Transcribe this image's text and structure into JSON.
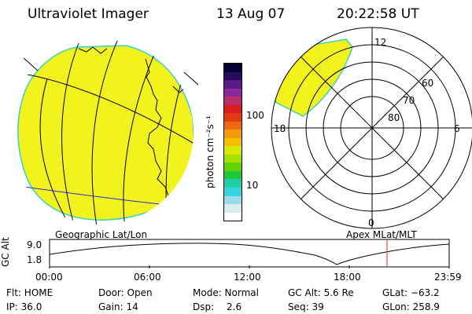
{
  "header": {
    "instrument": "Ultraviolet Imager",
    "date": "13 Aug 07",
    "time": "20:22:58 UT"
  },
  "colorbar": {
    "unit_label": "photon cm⁻²s⁻¹",
    "ticks": [
      "100",
      "10"
    ],
    "colors": [
      "#000033",
      "#2a0a5a",
      "#5a1a8a",
      "#8a2a9a",
      "#b8306a",
      "#dd1c1c",
      "#e33a14",
      "#ee6a0c",
      "#f39a08",
      "#f5c000",
      "#d9e800",
      "#a8e000",
      "#60d400",
      "#1ec83a",
      "#1ed0a8",
      "#36d6e0",
      "#9adcea",
      "#d8ecf2",
      "#ffffff"
    ]
  },
  "left_map": {
    "label": "Geographic Lat/Lon",
    "fill_color": "#f2f21c",
    "edge_color": "#3ccfc8"
  },
  "right_map": {
    "label": "Apex MLat/MLT",
    "mlt_labels": {
      "top": "12",
      "left": "18",
      "right": "6",
      "bottom": "0"
    },
    "lat_labels": [
      "60",
      "70",
      "80"
    ]
  },
  "altitude_plot": {
    "ylabel": "GC Alt",
    "yticks": [
      "9.0",
      "1.8"
    ],
    "xticks": [
      "00:00",
      "06:00",
      "12:00",
      "18:00",
      "23:59"
    ],
    "current_marker_color": "#e02020"
  },
  "status": {
    "flt": "Flt: HOME",
    "ip": "IP: 36.0",
    "door": "Door: Open",
    "gain": "Gain: 14",
    "mode": "Mode: Normal",
    "dsp_label": "Dsp:",
    "dsp_value": "2.6",
    "gc_alt": "GC Alt: 5.6 Re",
    "seq": "Seq: 39",
    "glat": "GLat: −63.2",
    "glon": "GLon: 258.9"
  }
}
